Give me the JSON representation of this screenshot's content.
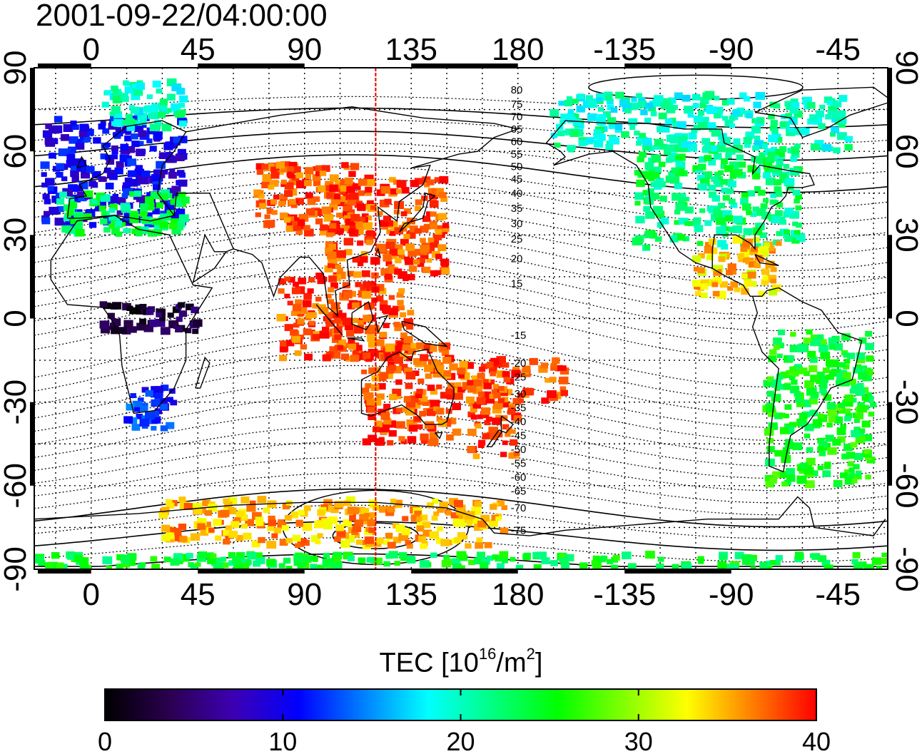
{
  "title": "2001-09-22/04:00:00",
  "map": {
    "x_ticks": [
      {
        "lon": -22.5,
        "label": ""
      },
      {
        "lon": 0,
        "label": "0"
      },
      {
        "lon": 45,
        "label": "45"
      },
      {
        "lon": 90,
        "label": "90"
      },
      {
        "lon": 135,
        "label": "135"
      },
      {
        "lon": 180,
        "label": "180"
      },
      {
        "lon": 225,
        "label": "-135"
      },
      {
        "lon": 270,
        "label": "-90"
      },
      {
        "lon": 315,
        "label": "-45"
      }
    ],
    "lon_range": [
      -24,
      336
    ],
    "lat_ticks": [
      {
        "lat": 90,
        "label": "90"
      },
      {
        "lat": 60,
        "label": "60"
      },
      {
        "lat": 30,
        "label": "30"
      },
      {
        "lat": 0,
        "label": "0"
      },
      {
        "lat": -30,
        "label": "-30"
      },
      {
        "lat": -60,
        "label": "-60"
      },
      {
        "lat": -90,
        "label": "-90"
      }
    ],
    "lat_range": [
      -90,
      90
    ],
    "grid": true,
    "meridian_marker_lon": 120,
    "meridian_marker_color": "#e00000",
    "contour_labels": [
      {
        "value": "80",
        "lon": 180,
        "lat": 82
      },
      {
        "value": "75",
        "lon": 180,
        "lat": 77
      },
      {
        "value": "70",
        "lon": 180,
        "lat": 72.5
      },
      {
        "value": "65",
        "lon": 180,
        "lat": 68
      },
      {
        "value": "60",
        "lon": 180,
        "lat": 63.5
      },
      {
        "value": "55",
        "lon": 180,
        "lat": 59
      },
      {
        "value": "50",
        "lon": 180,
        "lat": 54.5
      },
      {
        "value": "45",
        "lon": 180,
        "lat": 50
      },
      {
        "value": "40",
        "lon": 180,
        "lat": 45
      },
      {
        "value": "35",
        "lon": 180,
        "lat": 39.5
      },
      {
        "value": "30",
        "lon": 180,
        "lat": 34
      },
      {
        "value": "25",
        "lon": 180,
        "lat": 28.5
      },
      {
        "value": "20",
        "lon": 180,
        "lat": 21.5
      },
      {
        "value": "15",
        "lon": 180,
        "lat": 12.5
      },
      {
        "value": "-15",
        "lon": 180,
        "lat": -6
      },
      {
        "value": "-20",
        "lon": 180,
        "lat": -16
      },
      {
        "value": "-25",
        "lon": 180,
        "lat": -21
      },
      {
        "value": "-30",
        "lon": 180,
        "lat": -27
      },
      {
        "value": "-35",
        "lon": 180,
        "lat": -32
      },
      {
        "value": "-40",
        "lon": 180,
        "lat": -37
      },
      {
        "value": "-45",
        "lon": 180,
        "lat": -42
      },
      {
        "value": "-50",
        "lon": 180,
        "lat": -47
      },
      {
        "value": "-55",
        "lon": 180,
        "lat": -52
      },
      {
        "value": "-60",
        "lon": 180,
        "lat": -57
      },
      {
        "value": "-65",
        "lon": 180,
        "lat": -62
      },
      {
        "value": "-70",
        "lon": 180,
        "lat": -68
      },
      {
        "value": "-75",
        "lon": 180,
        "lat": -76
      }
    ],
    "tec_patches": [
      {
        "region": "Europe",
        "lon": [
          -20,
          40
        ],
        "lat": [
          33,
          72
        ],
        "tec": 10
      },
      {
        "region": "Europe south",
        "lon": [
          -15,
          40
        ],
        "lat": [
          30,
          45
        ],
        "tec": 23
      },
      {
        "region": "Scandinavia",
        "lon": [
          5,
          40
        ],
        "lat": [
          68,
          85
        ],
        "tec": 20
      },
      {
        "region": "North America",
        "lon": [
          230,
          300
        ],
        "lat": [
          25,
          62
        ],
        "tec": 22
      },
      {
        "region": "Alaska/Canada",
        "lon": [
          195,
          320
        ],
        "lat": [
          60,
          80
        ],
        "tec": 20
      },
      {
        "region": "Central America",
        "lon": [
          255,
          290
        ],
        "lat": [
          8,
          28
        ],
        "tec": 34
      },
      {
        "region": "South America",
        "lon": [
          285,
          330
        ],
        "lat": [
          -60,
          -5
        ],
        "tec": 25
      },
      {
        "region": "East Asia",
        "lon": [
          100,
          150
        ],
        "lat": [
          15,
          50
        ],
        "tec": 38
      },
      {
        "region": "Central Asia",
        "lon": [
          70,
          115
        ],
        "lat": [
          30,
          55
        ],
        "tec": 38
      },
      {
        "region": "SE Asia",
        "lon": [
          80,
          135
        ],
        "lat": [
          -15,
          15
        ],
        "tec": 38
      },
      {
        "region": "Australia",
        "lon": [
          115,
          155
        ],
        "lat": [
          -45,
          -10
        ],
        "tec": 38
      },
      {
        "region": "New Zealand",
        "lon": [
          160,
          180
        ],
        "lat": [
          -50,
          -30
        ],
        "tec": 38
      },
      {
        "region": "South Pacific",
        "lon": [
          155,
          200
        ],
        "lat": [
          -30,
          -15
        ],
        "tec": 38
      },
      {
        "region": "Africa equator",
        "lon": [
          5,
          45
        ],
        "lat": [
          -5,
          5
        ],
        "tec": 3
      },
      {
        "region": "South Africa",
        "lon": [
          15,
          35
        ],
        "lat": [
          -40,
          -25
        ],
        "tec": 12
      },
      {
        "region": "Antarctica",
        "lon": [
          30,
          175
        ],
        "lat": [
          -82,
          -65
        ],
        "tec": 35
      },
      {
        "region": "Antarctica rim",
        "lon": [
          -22,
          335
        ],
        "lat": [
          -90,
          -85
        ],
        "tec": 24
      }
    ]
  },
  "colorbar": {
    "title_main": "TEC  [10",
    "title_sup1": "16",
    "title_mid": "/m",
    "title_sup2": "2",
    "title_end": "]",
    "min": 0,
    "max": 40,
    "ticks": [
      "0",
      "10",
      "20",
      "30",
      "40"
    ],
    "colormap": [
      "#000000",
      "#2b0050",
      "#3c00b4",
      "#0000ff",
      "#0080ff",
      "#00ffff",
      "#00ff80",
      "#00ff00",
      "#80ff00",
      "#ffff00",
      "#ff8000",
      "#ff0000"
    ]
  }
}
